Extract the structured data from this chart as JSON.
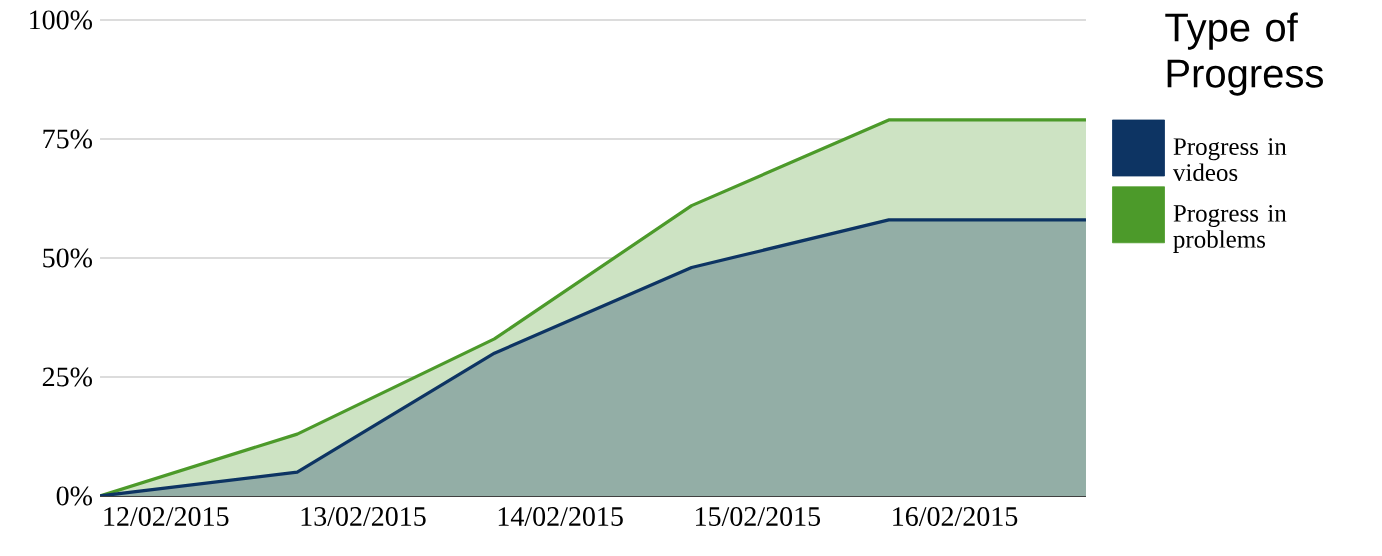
{
  "chart_data": {
    "type": "area",
    "legend_title": "Type of Progress",
    "x": [
      "2015-02-11T16:00",
      "2015-02-12T16:00",
      "2015-02-13T16:00",
      "2015-02-14T16:00",
      "2015-02-15T16:00",
      "2015-02-16T16:00"
    ],
    "series": [
      {
        "name": "Progress in videos",
        "color": "#0d3463",
        "values": [
          0,
          5,
          30,
          48,
          58,
          58
        ]
      },
      {
        "name": "Progress in problems",
        "color": "#4c9a2a",
        "values": [
          0,
          13,
          33,
          61,
          79,
          79
        ]
      }
    ],
    "xlim": [
      "2015-02-11T16:00",
      "2015-02-16T16:00"
    ],
    "xticks": [
      {
        "value": "2015-02-12",
        "label": "12/02/2015"
      },
      {
        "value": "2015-02-13",
        "label": "13/02/2015"
      },
      {
        "value": "2015-02-14",
        "label": "14/02/2015"
      },
      {
        "value": "2015-02-15",
        "label": "15/02/2015"
      },
      {
        "value": "2015-02-16",
        "label": "16/02/2015"
      }
    ],
    "ylim": [
      0,
      100
    ],
    "yticks": [
      {
        "value": 0,
        "label": "0%"
      },
      {
        "value": 25,
        "label": "25%"
      },
      {
        "value": 50,
        "label": "50%"
      },
      {
        "value": 75,
        "label": "75%"
      },
      {
        "value": 100,
        "label": "100%"
      }
    ],
    "grid": "y",
    "legend": "right",
    "marker": "none",
    "line_style": "solid"
  }
}
